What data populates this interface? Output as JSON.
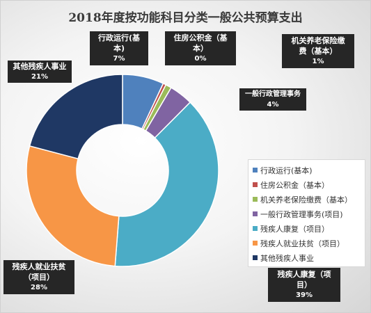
{
  "chart_data": {
    "type": "pie",
    "donut": true,
    "title": "2018年度按功能科目分类一般公共预算支出",
    "legend_position": "right",
    "slices": [
      {
        "name": "行政运行(基本)",
        "value": 7,
        "color": "#4f81bd",
        "label_lines": [
          "行政运行(基",
          "本)"
        ],
        "pct_text": "7%"
      },
      {
        "name": "住房公积金（基本）",
        "value": 0.5,
        "color": "#c0504d",
        "label_lines": [
          "住房公积金（基",
          "本）"
        ],
        "pct_text": "0%"
      },
      {
        "name": "机关养老保险缴费（基本）",
        "value": 1,
        "color": "#9bbb59",
        "label_lines": [
          "机关养老保险缴",
          "费（基本）"
        ],
        "pct_text": "1%"
      },
      {
        "name": "一般行政管理事务(项目)",
        "value": 4,
        "color": "#8064a2",
        "label_lines": [
          "一般行政管理事务"
        ],
        "pct_text": "4%"
      },
      {
        "name": "残疾人康复（项目）",
        "value": 39,
        "color": "#4bacc6",
        "label_lines": [
          "残疾人康复（项",
          "目）"
        ],
        "pct_text": "39%"
      },
      {
        "name": "残疾人就业扶贫（项目）",
        "value": 28,
        "color": "#f79646",
        "label_lines": [
          "残疾人就业扶贫",
          "（项目）"
        ],
        "pct_text": "28%"
      },
      {
        "name": "其他残疾人事业",
        "value": 21,
        "color": "#1f3864",
        "label_lines": [
          "其他残疾人事业"
        ],
        "pct_text": "21%"
      }
    ]
  }
}
